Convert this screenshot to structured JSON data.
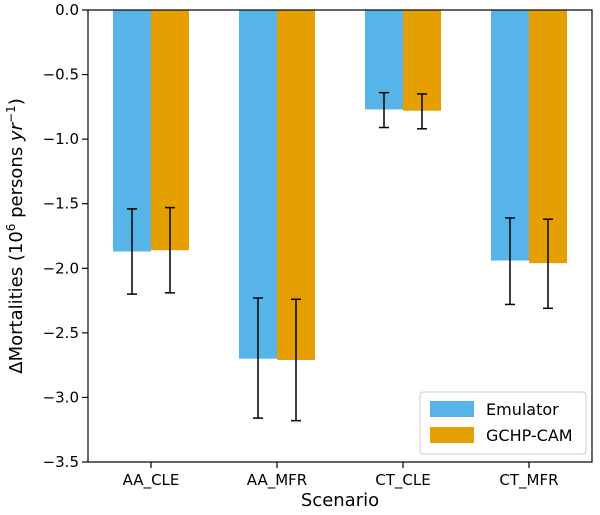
{
  "chart_data": {
    "type": "bar",
    "xlabel": "Scenario",
    "ylabel_prefix": "ΔMortalities (10",
    "ylabel_sup1": "6",
    "ylabel_mid": " persons ",
    "ylabel_italic": "yr",
    "ylabel_sup2": "−1",
    "ylabel_suffix": ")",
    "categories": [
      "AA_CLE",
      "AA_MFR",
      "CT_CLE",
      "CT_MFR"
    ],
    "ylim": [
      -3.5,
      0.0
    ],
    "yticks": [
      0.0,
      -0.5,
      -1.0,
      -1.5,
      -2.0,
      -2.5,
      -3.0,
      -3.5
    ],
    "ytick_labels": [
      "0.0",
      "−0.5",
      "−1.0",
      "−1.5",
      "−2.0",
      "−2.5",
      "−3.0",
      "−3.5"
    ],
    "grid": false,
    "legend_position": "bottom-right",
    "series": [
      {
        "name": "Emulator",
        "color": "#56B4E9",
        "values": [
          -1.87,
          -2.7,
          -0.77,
          -1.94
        ],
        "err_low": [
          -2.2,
          -3.16,
          -0.91,
          -2.28
        ],
        "err_high": [
          -1.54,
          -2.23,
          -0.64,
          -1.61
        ]
      },
      {
        "name": "GCHP-CAM",
        "color": "#E69F00",
        "values": [
          -1.86,
          -2.71,
          -0.78,
          -1.96
        ],
        "err_low": [
          -2.19,
          -3.18,
          -0.92,
          -2.31
        ],
        "err_high": [
          -1.53,
          -2.24,
          -0.65,
          -1.62
        ]
      }
    ]
  }
}
